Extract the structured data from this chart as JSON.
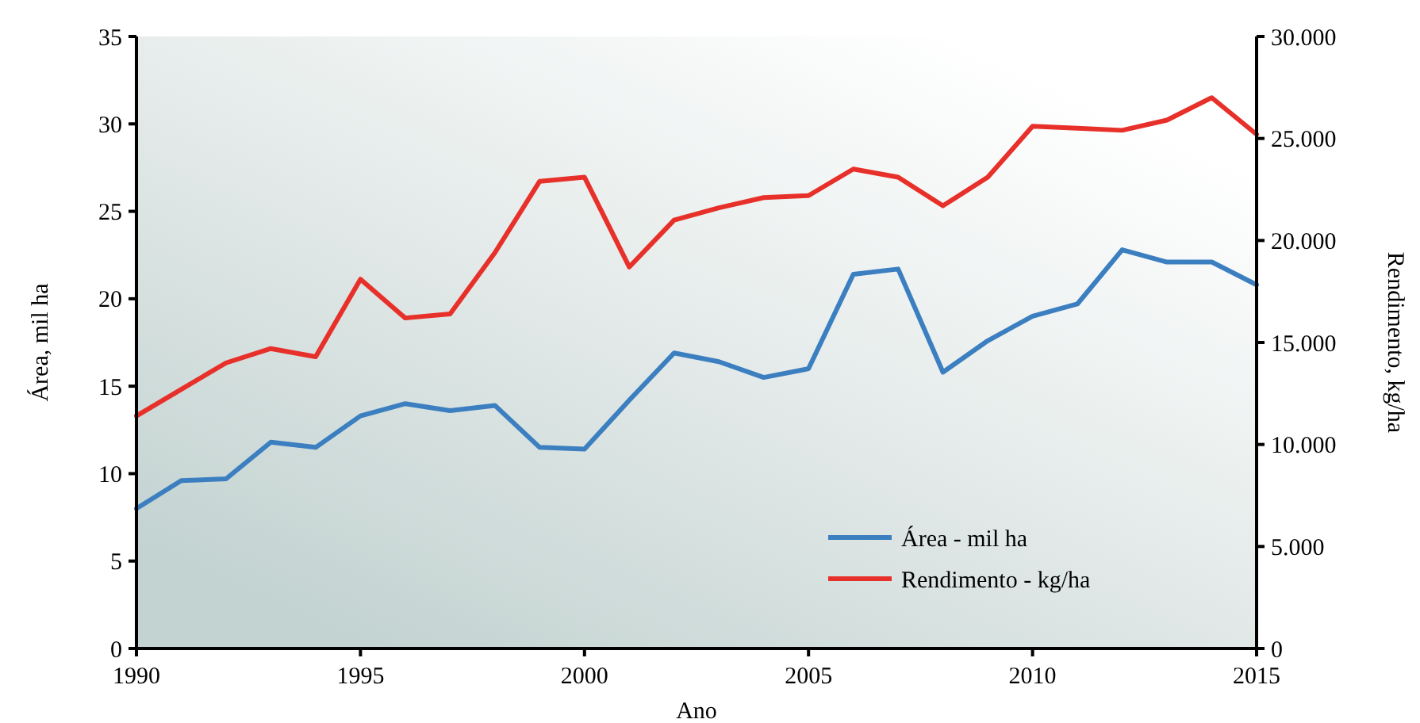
{
  "chart_data": {
    "type": "line",
    "xlabel": "Ano",
    "ylabel": "Área, mil ha",
    "y2label": "Rendimento, kg/ha",
    "x": [
      1990,
      1991,
      1992,
      1993,
      1994,
      1995,
      1996,
      1997,
      1998,
      1999,
      2000,
      2001,
      2002,
      2003,
      2004,
      2005,
      2006,
      2007,
      2008,
      2009,
      2010,
      2011,
      2012,
      2013,
      2014,
      2015
    ],
    "series": [
      {
        "name": "Área - mil ha",
        "color": "#3c7fc0",
        "values": [
          8.0,
          9.6,
          9.7,
          11.8,
          11.5,
          13.3,
          14.0,
          13.6,
          13.9,
          11.5,
          11.4,
          14.2,
          16.9,
          16.4,
          15.5,
          16.0,
          21.4,
          21.7,
          15.8,
          17.6,
          19.0,
          19.7,
          22.8,
          22.1,
          22.1,
          20.8
        ]
      },
      {
        "name": "Rendimento - kg/ha",
        "color": "#e8302a",
        "axis": "y2",
        "values": [
          11400,
          12700,
          14000,
          14700,
          14300,
          18100,
          16200,
          16400,
          19400,
          22900,
          23100,
          18700,
          21000,
          21600,
          22100,
          22200,
          23500,
          23100,
          21700,
          23100,
          25600,
          25500,
          25400,
          25900,
          27000,
          25200
        ]
      }
    ],
    "xlim": [
      1990,
      2015
    ],
    "xticks": [
      1990,
      1995,
      2000,
      2005,
      2010,
      2015
    ],
    "ylim": [
      0,
      35
    ],
    "yticks": [
      0,
      5,
      10,
      15,
      20,
      25,
      30,
      35
    ],
    "y2lim": [
      0,
      30000
    ],
    "y2ticks": [
      {
        "value": 0,
        "label": "0"
      },
      {
        "value": 5000,
        "label": "5.000"
      },
      {
        "value": 10000,
        "label": "10.000"
      },
      {
        "value": 15000,
        "label": "15.000"
      },
      {
        "value": 20000,
        "label": "20.000"
      },
      {
        "value": 25000,
        "label": "25.000"
      },
      {
        "value": 30000,
        "label": "30.000"
      }
    ],
    "grid": false,
    "legend": "bottom right",
    "marker": "none",
    "line_style": "solid"
  }
}
